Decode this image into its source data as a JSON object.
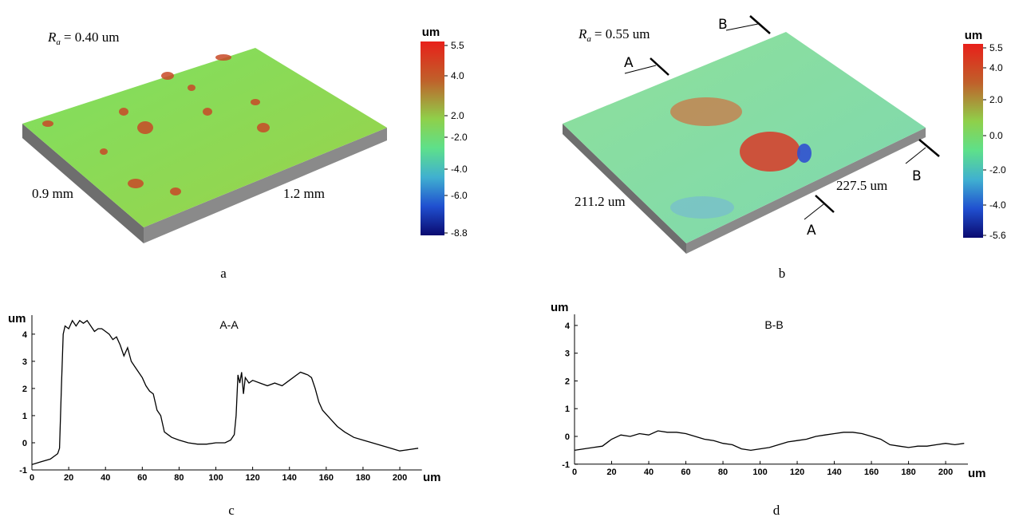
{
  "surfaces": [
    {
      "ra": {
        "symbol": "R",
        "subscript": "a",
        "text": "= 0.40 um"
      },
      "colorbar_unit": "um",
      "colorbar_ticks": [
        "5.5",
        "4.0",
        "2.0",
        "-2.0",
        "-4.0",
        "-6.0",
        "-8.8"
      ],
      "dim_left": "0.9 mm",
      "dim_right": "1.2 mm",
      "panel_label": "a"
    },
    {
      "ra": {
        "symbol": "R",
        "subscript": "a",
        "text": "= 0.55 um"
      },
      "colorbar_unit": "um",
      "colorbar_ticks": [
        "5.5",
        "4.0",
        "2.0",
        "0.0",
        "-2.0",
        "-4.0",
        "-5.6"
      ],
      "dim_left": "211.2 um",
      "dim_right": "227.5 um",
      "panel_label": "b",
      "section_markers": [
        "A",
        "B",
        "B",
        "A"
      ]
    }
  ],
  "chart_data": [
    {
      "type": "line",
      "title": "A-A",
      "ylabel": "um",
      "xlabel": "um",
      "panel_label": "c",
      "color": "#000000",
      "x": [
        0,
        5,
        10,
        14,
        15,
        16,
        17,
        18,
        20,
        22,
        24,
        26,
        28,
        30,
        32,
        34,
        36,
        38,
        40,
        42,
        44,
        46,
        48,
        50,
        52,
        54,
        56,
        58,
        60,
        62,
        64,
        66,
        68,
        70,
        72,
        74,
        76,
        80,
        85,
        90,
        95,
        100,
        105,
        108,
        110,
        111,
        112,
        113,
        114,
        115,
        116,
        118,
        120,
        124,
        128,
        132,
        136,
        140,
        144,
        146,
        150,
        152,
        154,
        156,
        158,
        162,
        166,
        170,
        175,
        180,
        185,
        190,
        195,
        200,
        205,
        210
      ],
      "values": [
        -0.8,
        -0.7,
        -0.6,
        -0.4,
        -0.2,
        2.0,
        4.0,
        4.3,
        4.2,
        4.5,
        4.3,
        4.5,
        4.4,
        4.5,
        4.3,
        4.1,
        4.2,
        4.2,
        4.1,
        4.0,
        3.8,
        3.9,
        3.6,
        3.2,
        3.5,
        3.0,
        2.8,
        2.6,
        2.4,
        2.1,
        1.9,
        1.8,
        1.2,
        1.0,
        0.4,
        0.3,
        0.2,
        0.1,
        0.0,
        -0.05,
        -0.05,
        0.0,
        0.0,
        0.1,
        0.3,
        1.0,
        2.5,
        2.2,
        2.6,
        1.8,
        2.4,
        2.2,
        2.3,
        2.2,
        2.1,
        2.2,
        2.1,
        2.3,
        2.5,
        2.6,
        2.5,
        2.4,
        2.0,
        1.5,
        1.2,
        0.9,
        0.6,
        0.4,
        0.2,
        0.1,
        0.0,
        -0.1,
        -0.2,
        -0.3,
        -0.25,
        -0.2
      ],
      "xlim": [
        0,
        212
      ],
      "ylim": [
        -1,
        4.7
      ],
      "xticks": [
        0,
        20,
        40,
        60,
        80,
        100,
        120,
        140,
        160,
        180,
        200
      ],
      "yticks": [
        -1,
        0,
        1,
        2,
        3,
        4
      ]
    },
    {
      "type": "line",
      "title": "B-B",
      "ylabel": "um",
      "xlabel": "um",
      "panel_label": "d",
      "color": "#000000",
      "x": [
        0,
        5,
        10,
        15,
        20,
        25,
        30,
        35,
        40,
        45,
        50,
        55,
        60,
        65,
        70,
        75,
        80,
        85,
        90,
        95,
        100,
        105,
        110,
        115,
        120,
        125,
        130,
        135,
        140,
        145,
        150,
        155,
        160,
        165,
        170,
        175,
        180,
        185,
        190,
        195,
        200,
        205,
        210
      ],
      "values": [
        -0.5,
        -0.45,
        -0.4,
        -0.35,
        -0.1,
        0.05,
        0.0,
        0.1,
        0.05,
        0.2,
        0.15,
        0.15,
        0.1,
        0.0,
        -0.1,
        -0.15,
        -0.25,
        -0.3,
        -0.45,
        -0.5,
        -0.45,
        -0.4,
        -0.3,
        -0.2,
        -0.15,
        -0.1,
        0.0,
        0.05,
        0.1,
        0.15,
        0.15,
        0.1,
        0.0,
        -0.1,
        -0.3,
        -0.35,
        -0.4,
        -0.35,
        -0.35,
        -0.3,
        -0.25,
        -0.3,
        -0.25
      ],
      "xlim": [
        0,
        212
      ],
      "ylim": [
        -1,
        4.4
      ],
      "xticks": [
        0,
        20,
        40,
        60,
        80,
        100,
        120,
        140,
        160,
        180,
        200
      ],
      "yticks": [
        -1,
        0,
        1,
        2,
        3,
        4
      ]
    }
  ]
}
